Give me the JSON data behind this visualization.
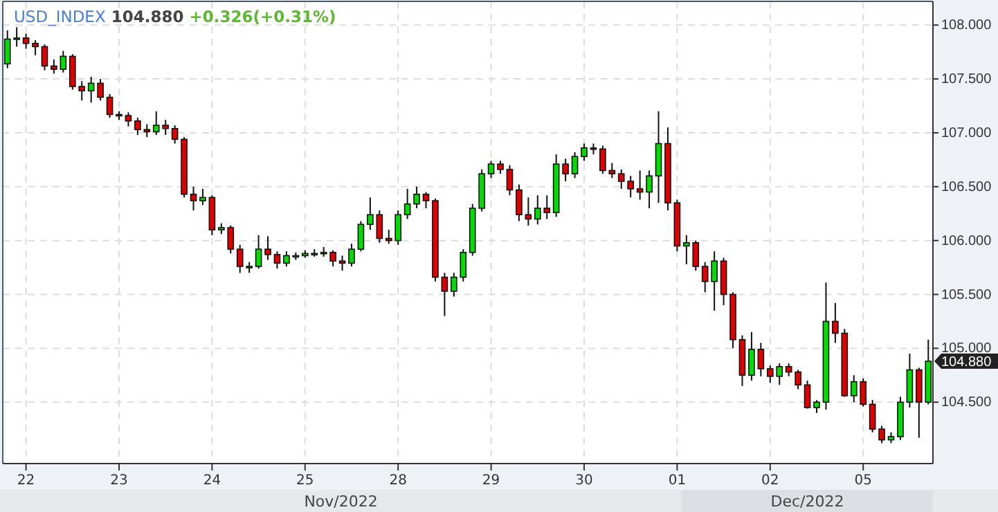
{
  "chart_data": {
    "type": "candlestick",
    "title": "USD_INDEX",
    "subtitle": "104.880 +0.326(+0.31%)",
    "categories": [
      null,
      null,
      "22",
      null,
      null,
      null,
      null,
      null,
      null,
      null,
      null,
      null,
      "23",
      null,
      null,
      null,
      null,
      null,
      null,
      null,
      null,
      null,
      "24",
      null,
      null,
      null,
      null,
      null,
      null,
      null,
      null,
      null,
      "25",
      null,
      null,
      null,
      null,
      null,
      null,
      null,
      null,
      null,
      "28",
      null,
      null,
      null,
      null,
      null,
      null,
      null,
      null,
      null,
      "29",
      null,
      null,
      null,
      null,
      null,
      null,
      null,
      null,
      null,
      "30",
      null,
      null,
      null,
      null,
      null,
      null,
      null,
      null,
      null,
      "01",
      null,
      null,
      null,
      null,
      null,
      null,
      null,
      null,
      null,
      "02",
      null,
      null,
      null,
      null,
      null,
      null,
      null,
      null,
      null,
      "05",
      null,
      null,
      null,
      null,
      null,
      null,
      null
    ],
    "ohlc": [
      [
        107.64,
        107.95,
        107.6,
        107.87
      ],
      [
        107.87,
        107.98,
        107.8,
        107.88
      ],
      [
        107.88,
        107.92,
        107.78,
        107.83
      ],
      [
        107.83,
        107.86,
        107.72,
        107.8
      ],
      [
        107.8,
        107.82,
        107.58,
        107.62
      ],
      [
        107.62,
        107.68,
        107.55,
        107.59
      ],
      [
        107.59,
        107.76,
        107.56,
        107.71
      ],
      [
        107.71,
        107.73,
        107.4,
        107.43
      ],
      [
        107.43,
        107.48,
        107.3,
        107.39
      ],
      [
        107.39,
        107.52,
        107.28,
        107.46
      ],
      [
        107.46,
        107.5,
        107.3,
        107.33
      ],
      [
        107.33,
        107.36,
        107.14,
        107.17
      ],
      [
        107.17,
        107.2,
        107.12,
        107.16
      ],
      [
        107.16,
        107.19,
        107.06,
        107.11
      ],
      [
        107.11,
        107.14,
        106.98,
        107.03
      ],
      [
        107.03,
        107.08,
        106.96,
        107.01
      ],
      [
        107.01,
        107.2,
        106.98,
        107.07
      ],
      [
        107.07,
        107.12,
        106.98,
        107.04
      ],
      [
        107.04,
        107.07,
        106.9,
        106.94
      ],
      [
        106.94,
        106.96,
        106.4,
        106.43
      ],
      [
        106.43,
        106.5,
        106.28,
        106.37
      ],
      [
        106.37,
        106.48,
        106.33,
        106.4
      ],
      [
        106.4,
        106.42,
        106.05,
        106.1
      ],
      [
        106.1,
        106.16,
        106.06,
        106.12
      ],
      [
        106.12,
        106.14,
        105.88,
        105.92
      ],
      [
        105.92,
        105.96,
        105.7,
        105.76
      ],
      [
        105.76,
        105.8,
        105.7,
        105.76
      ],
      [
        105.76,
        106.05,
        105.74,
        105.92
      ],
      [
        105.92,
        106.04,
        105.82,
        105.87
      ],
      [
        105.87,
        105.9,
        105.74,
        105.79
      ],
      [
        105.79,
        105.9,
        105.76,
        105.86
      ],
      [
        105.86,
        105.89,
        105.82,
        105.86
      ],
      [
        105.86,
        105.91,
        105.84,
        105.88
      ],
      [
        105.88,
        105.92,
        105.85,
        105.88
      ],
      [
        105.88,
        105.94,
        105.85,
        105.89
      ],
      [
        105.89,
        105.91,
        105.76,
        105.81
      ],
      [
        105.81,
        105.86,
        105.72,
        105.79
      ],
      [
        105.79,
        105.97,
        105.76,
        105.92
      ],
      [
        105.92,
        106.18,
        105.9,
        106.15
      ],
      [
        106.15,
        106.4,
        106.1,
        106.24
      ],
      [
        106.24,
        106.28,
        105.98,
        106.02
      ],
      [
        106.02,
        106.1,
        105.97,
        106.0
      ],
      [
        106.0,
        106.28,
        105.96,
        106.24
      ],
      [
        106.24,
        106.48,
        106.2,
        106.34
      ],
      [
        106.34,
        106.5,
        106.3,
        106.43
      ],
      [
        106.43,
        106.45,
        106.3,
        106.37
      ],
      [
        106.37,
        106.39,
        105.62,
        105.66
      ],
      [
        105.66,
        105.7,
        105.3,
        105.53
      ],
      [
        105.53,
        105.7,
        105.48,
        105.66
      ],
      [
        105.66,
        105.92,
        105.62,
        105.89
      ],
      [
        105.89,
        106.34,
        105.86,
        106.3
      ],
      [
        106.3,
        106.66,
        106.27,
        106.62
      ],
      [
        106.62,
        106.74,
        106.58,
        106.71
      ],
      [
        106.71,
        106.74,
        106.62,
        106.66
      ],
      [
        106.66,
        106.7,
        106.42,
        106.47
      ],
      [
        106.47,
        106.52,
        106.18,
        106.24
      ],
      [
        106.24,
        106.4,
        106.14,
        106.2
      ],
      [
        106.2,
        106.42,
        106.15,
        106.3
      ],
      [
        106.3,
        106.42,
        106.2,
        106.26
      ],
      [
        106.26,
        106.8,
        106.22,
        106.71
      ],
      [
        106.71,
        106.76,
        106.55,
        106.62
      ],
      [
        106.62,
        106.82,
        106.58,
        106.78
      ],
      [
        106.78,
        106.9,
        106.74,
        106.86
      ],
      [
        106.86,
        106.9,
        106.8,
        106.85
      ],
      [
        106.85,
        106.88,
        106.62,
        106.65
      ],
      [
        106.65,
        106.72,
        106.58,
        106.62
      ],
      [
        106.62,
        106.66,
        106.48,
        106.55
      ],
      [
        106.55,
        106.6,
        106.4,
        106.48
      ],
      [
        106.48,
        106.65,
        106.38,
        106.45
      ],
      [
        106.45,
        106.65,
        106.3,
        106.6
      ],
      [
        106.6,
        107.2,
        106.35,
        106.9
      ],
      [
        106.9,
        107.05,
        106.28,
        106.35
      ],
      [
        106.35,
        106.38,
        105.9,
        105.95
      ],
      [
        105.95,
        106.05,
        105.78,
        105.98
      ],
      [
        105.98,
        106.0,
        105.72,
        105.76
      ],
      [
        105.76,
        105.8,
        105.52,
        105.62
      ],
      [
        105.62,
        105.9,
        105.35,
        105.81
      ],
      [
        105.81,
        105.84,
        105.4,
        105.5
      ],
      [
        105.5,
        105.52,
        105.0,
        105.08
      ],
      [
        105.08,
        105.12,
        104.65,
        104.75
      ],
      [
        104.75,
        105.15,
        104.7,
        104.99
      ],
      [
        104.99,
        105.05,
        104.74,
        104.81
      ],
      [
        104.81,
        104.84,
        104.68,
        104.74
      ],
      [
        104.74,
        104.86,
        104.66,
        104.83
      ],
      [
        104.83,
        104.86,
        104.74,
        104.78
      ],
      [
        104.78,
        104.8,
        104.62,
        104.66
      ],
      [
        104.66,
        104.7,
        104.44,
        104.45
      ],
      [
        104.45,
        104.52,
        104.4,
        104.5
      ],
      [
        104.5,
        105.61,
        104.43,
        105.25
      ],
      [
        105.25,
        105.42,
        105.05,
        105.14
      ],
      [
        105.14,
        105.18,
        104.55,
        104.56
      ],
      [
        104.56,
        104.75,
        104.5,
        104.69
      ],
      [
        104.69,
        104.72,
        104.46,
        104.48
      ],
      [
        104.48,
        104.52,
        104.22,
        104.25
      ],
      [
        104.25,
        104.28,
        104.12,
        104.15
      ],
      [
        104.15,
        104.22,
        104.12,
        104.18
      ],
      [
        104.18,
        104.55,
        104.15,
        104.5
      ],
      [
        104.5,
        104.95,
        104.45,
        104.8
      ],
      [
        104.8,
        104.82,
        104.17,
        104.5
      ],
      [
        104.5,
        105.08,
        104.48,
        104.88
      ]
    ],
    "colors": [
      "#00dd00",
      "#00dd00",
      "#e00000",
      "#e00000",
      "#e00000",
      "#e00000",
      "#00dd00",
      "#e00000",
      "#e00000",
      "#00dd00",
      "#e00000",
      "#e00000",
      "#e00000",
      "#e00000",
      "#e00000",
      "#e00000",
      "#00dd00",
      "#e00000",
      "#e00000",
      "#e00000",
      "#e00000",
      "#00dd00",
      "#e00000",
      "#00dd00",
      "#e00000",
      "#e00000",
      "#00dd00",
      "#00dd00",
      "#e00000",
      "#e00000",
      "#00dd00",
      "#00dd00",
      "#00dd00",
      "#00dd00",
      "#00dd00",
      "#e00000",
      "#e00000",
      "#00dd00",
      "#00dd00",
      "#00dd00",
      "#e00000",
      "#e00000",
      "#00dd00",
      "#00dd00",
      "#00dd00",
      "#e00000",
      "#e00000",
      "#e00000",
      "#00dd00",
      "#00dd00",
      "#00dd00",
      "#00dd00",
      "#00dd00",
      "#e00000",
      "#e00000",
      "#e00000",
      "#e00000",
      "#00dd00",
      "#e00000",
      "#00dd00",
      "#e00000",
      "#00dd00",
      "#00dd00",
      "#e00000",
      "#e00000",
      "#e00000",
      "#e00000",
      "#e00000",
      "#e00000",
      "#00dd00",
      "#00dd00",
      "#e00000",
      "#e00000",
      "#00dd00",
      "#e00000",
      "#e00000",
      "#00dd00",
      "#e00000",
      "#e00000",
      "#e00000",
      "#00dd00",
      "#e00000",
      "#e00000",
      "#00dd00",
      "#e00000",
      "#e00000",
      "#e00000",
      "#00dd00",
      "#00dd00",
      "#e00000",
      "#e00000",
      "#00dd00",
      "#e00000",
      "#e00000",
      "#e00000",
      "#00dd00",
      "#00dd00",
      "#00dd00",
      "#e00000",
      "#00dd00"
    ],
    "ylim": [
      103.93,
      108.22
    ],
    "yticks": [
      {
        "value": 104.5,
        "label": "104.500"
      },
      {
        "value": 105,
        "label": "105.000"
      },
      {
        "value": 105.5,
        "label": "105.500"
      },
      {
        "value": 106,
        "label": "106.000"
      },
      {
        "value": 106.5,
        "label": "106.500"
      },
      {
        "value": 107,
        "label": "107.000"
      },
      {
        "value": 107.5,
        "label": "107.500"
      },
      {
        "value": 108,
        "label": "108.000"
      }
    ],
    "annotations": [
      "Nov/2022",
      "Dec/2022",
      "104.880"
    ],
    "grid": true
  }
}
